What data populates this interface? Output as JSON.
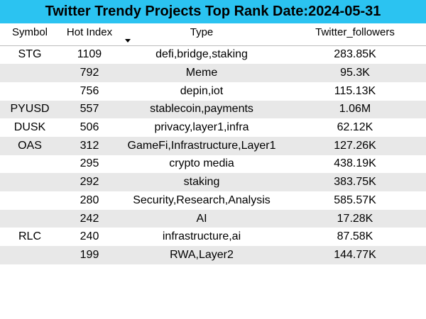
{
  "title": "Twitter Trendy Projects Top Rank Date:2024-05-31",
  "header": {
    "symbol": "Symbol",
    "hot_index": "Hot Index",
    "type": "Type",
    "followers": "Twitter_followers",
    "sort_icon": "sort-descending-icon"
  },
  "colors": {
    "title_bg": "#2bc3f1",
    "stripe": "#e8e8e8"
  },
  "rows": [
    {
      "symbol": "STG",
      "hot_index": "1109",
      "type": "defi,bridge,staking",
      "followers": "283.85K"
    },
    {
      "symbol": "",
      "hot_index": "792",
      "type": "Meme",
      "followers": "95.3K"
    },
    {
      "symbol": "",
      "hot_index": "756",
      "type": "depin,iot",
      "followers": "115.13K"
    },
    {
      "symbol": "PYUSD",
      "hot_index": "557",
      "type": "stablecoin,payments",
      "followers": "1.06M"
    },
    {
      "symbol": "DUSK",
      "hot_index": "506",
      "type": "privacy,layer1,infra",
      "followers": "62.12K"
    },
    {
      "symbol": "OAS",
      "hot_index": "312",
      "type": "GameFi,Infrastructure,Layer1",
      "followers": "127.26K"
    },
    {
      "symbol": "",
      "hot_index": "295",
      "type": "crypto media",
      "followers": "438.19K"
    },
    {
      "symbol": "",
      "hot_index": "292",
      "type": "staking",
      "followers": "383.75K"
    },
    {
      "symbol": "",
      "hot_index": "280",
      "type": "Security,Research,Analysis",
      "followers": "585.57K"
    },
    {
      "symbol": "",
      "hot_index": "242",
      "type": "AI",
      "followers": "17.28K"
    },
    {
      "symbol": "RLC",
      "hot_index": "240",
      "type": "infrastructure,ai",
      "followers": "87.58K"
    },
    {
      "symbol": "",
      "hot_index": "199",
      "type": "RWA,Layer2",
      "followers": "144.77K"
    }
  ]
}
